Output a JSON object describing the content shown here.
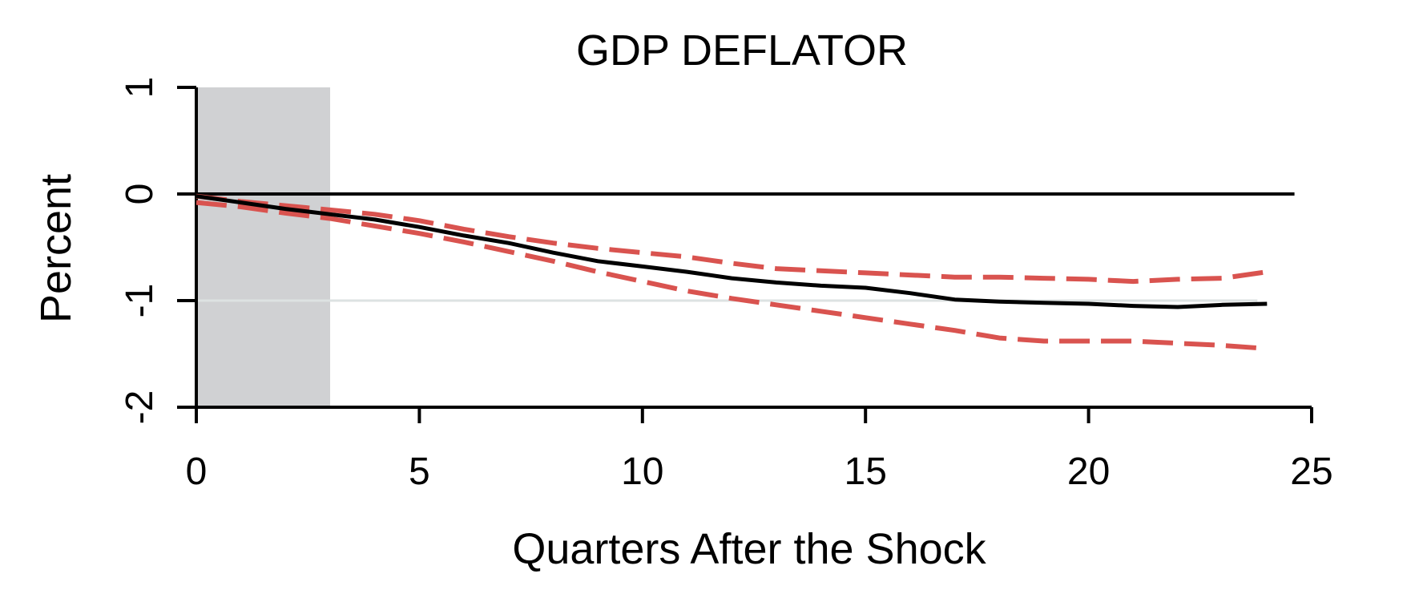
{
  "chart_data": {
    "type": "line",
    "title": "GDP DEFLATOR",
    "xlabel": "Quarters After the Shock",
    "ylabel": "Percent",
    "xlim": [
      0,
      25
    ],
    "ylim": [
      -2,
      1
    ],
    "x_ticks": [
      0,
      5,
      10,
      15,
      20,
      25
    ],
    "y_ticks": [
      -2,
      -1,
      0,
      1
    ],
    "shaded_region": {
      "x": [
        0,
        3
      ],
      "color": "#d0d1d3"
    },
    "reference_line": {
      "y": 0,
      "color": "#000000"
    },
    "gridlines_y": [
      -1
    ],
    "x": [
      0,
      1,
      2,
      3,
      4,
      5,
      6,
      7,
      8,
      9,
      10,
      11,
      12,
      13,
      14,
      15,
      16,
      17,
      18,
      19,
      20,
      21,
      22,
      23,
      24
    ],
    "series": [
      {
        "role": "estimate",
        "style": "solid",
        "color": "#000000",
        "values": [
          -0.02,
          -0.08,
          -0.14,
          -0.19,
          -0.24,
          -0.31,
          -0.39,
          -0.46,
          -0.55,
          -0.63,
          -0.68,
          -0.73,
          -0.79,
          -0.83,
          -0.86,
          -0.88,
          -0.93,
          -0.99,
          -1.01,
          -1.02,
          -1.03,
          -1.05,
          -1.06,
          -1.04,
          -1.03
        ]
      },
      {
        "role": "upper-band",
        "style": "dashed",
        "color": "#d9534f",
        "values": [
          -0.02,
          -0.07,
          -0.11,
          -0.15,
          -0.19,
          -0.25,
          -0.33,
          -0.4,
          -0.46,
          -0.51,
          -0.55,
          -0.59,
          -0.65,
          -0.7,
          -0.72,
          -0.74,
          -0.76,
          -0.78,
          -0.78,
          -0.79,
          -0.8,
          -0.82,
          -0.8,
          -0.79,
          -0.73
        ]
      },
      {
        "role": "lower-band",
        "style": "dashed",
        "color": "#d9534f",
        "values": [
          -0.08,
          -0.12,
          -0.18,
          -0.23,
          -0.3,
          -0.37,
          -0.45,
          -0.54,
          -0.63,
          -0.73,
          -0.82,
          -0.91,
          -0.98,
          -1.04,
          -1.1,
          -1.16,
          -1.22,
          -1.28,
          -1.35,
          -1.38,
          -1.38,
          -1.38,
          -1.4,
          -1.42,
          -1.45
        ]
      }
    ]
  }
}
